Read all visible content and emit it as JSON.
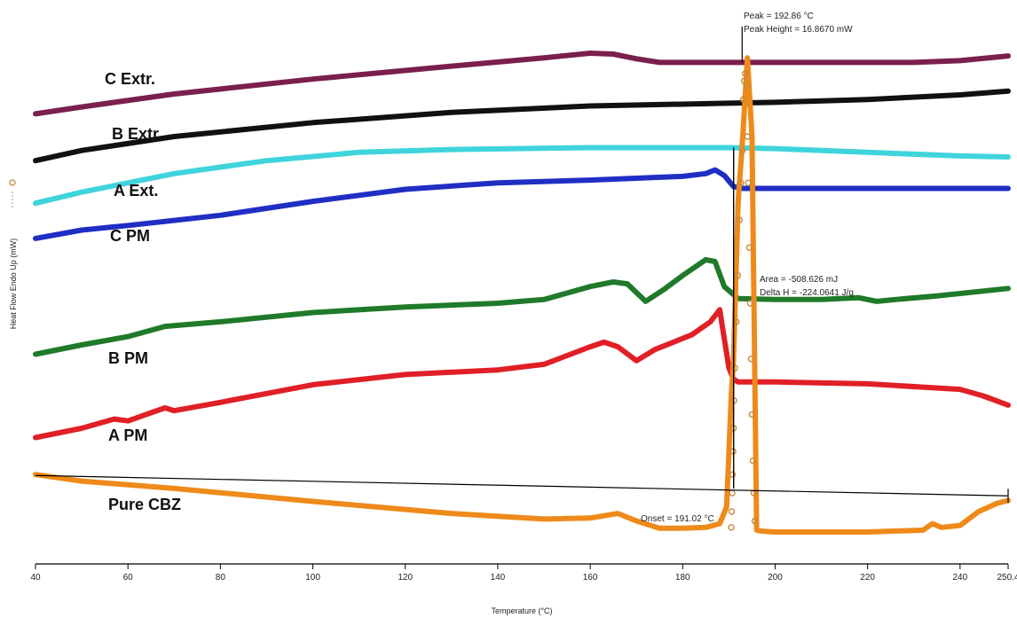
{
  "chart_data": {
    "type": "line",
    "title": "",
    "xlabel": "Temperature (°C)",
    "ylabel": "Heat Flow Endo Up (mW)",
    "xlim": [
      40,
      250.4
    ],
    "x_ticks": [
      "40",
      "60",
      "80",
      "100",
      "120",
      "140",
      "160",
      "180",
      "200",
      "220",
      "240",
      "250.4"
    ],
    "grid": false,
    "series": [
      {
        "name": "C Extr.",
        "color": "#7a1f4e",
        "x": [
          40,
          50,
          70,
          100,
          130,
          150,
          160,
          165,
          170,
          175,
          190,
          200,
          230,
          240,
          250.4
        ],
        "y": [
          0.45,
          1.2,
          2.6,
          4.2,
          5.6,
          6.5,
          7.0,
          6.9,
          6.4,
          6.0,
          6.0,
          6.0,
          6.0,
          6.2,
          6.7
        ]
      },
      {
        "name": "B Extr.",
        "color": "#111111",
        "x": [
          40,
          50,
          70,
          100,
          130,
          160,
          190,
          200,
          220,
          240,
          250.4
        ],
        "y": [
          -4.6,
          -3.5,
          -2.0,
          -0.5,
          0.6,
          1.3,
          1.6,
          1.7,
          2.0,
          2.5,
          2.9
        ]
      },
      {
        "name": "A Ext.",
        "color": "#3fd4dc",
        "x": [
          40,
          50,
          70,
          90,
          110,
          130,
          160,
          190,
          200,
          220,
          240,
          250.4
        ],
        "y": [
          -9.2,
          -8.0,
          -6.0,
          -4.6,
          -3.7,
          -3.4,
          -3.2,
          -3.2,
          -3.3,
          -3.7,
          -4.1,
          -4.2
        ]
      },
      {
        "name": "C PM",
        "color": "#1f2fc4",
        "x": [
          40,
          50,
          60,
          80,
          100,
          120,
          140,
          160,
          180,
          185,
          187,
          189,
          191,
          193,
          200,
          220,
          250.4
        ],
        "y": [
          -13.0,
          -12.1,
          -11.6,
          -10.5,
          -9.0,
          -7.7,
          -7.0,
          -6.7,
          -6.3,
          -6.0,
          -5.6,
          -6.2,
          -7.4,
          -7.6,
          -7.6,
          -7.6,
          -7.6
        ]
      },
      {
        "name": "B PM",
        "color": "#1f7a2a",
        "x": [
          40,
          50,
          60,
          68,
          80,
          100,
          120,
          140,
          150,
          160,
          165,
          168,
          172,
          176,
          180,
          185,
          187,
          189,
          192,
          200,
          210,
          218,
          222,
          226,
          235,
          250.4
        ],
        "y": [
          -25.5,
          -24.5,
          -23.6,
          -22.5,
          -22.0,
          -21.0,
          -20.4,
          -20.0,
          -19.6,
          -18.2,
          -17.7,
          -17.9,
          -19.8,
          -18.5,
          -17.0,
          -15.3,
          -15.5,
          -18.2,
          -19.5,
          -19.6,
          -19.6,
          -19.4,
          -19.8,
          -19.6,
          -19.2,
          -18.4
        ]
      },
      {
        "name": "A PM",
        "color": "#e01f26",
        "x": [
          40,
          50,
          57,
          60,
          68,
          70,
          80,
          100,
          120,
          140,
          150,
          160,
          163,
          166,
          170,
          174,
          178,
          182,
          186,
          188,
          190,
          191,
          192,
          200,
          220,
          240,
          245,
          250.4
        ],
        "y": [
          -34.5,
          -33.5,
          -32.5,
          -32.7,
          -31.3,
          -31.6,
          -30.7,
          -28.8,
          -27.7,
          -27.2,
          -26.6,
          -24.7,
          -24.2,
          -24.7,
          -26.2,
          -25.0,
          -24.2,
          -23.4,
          -22.0,
          -20.7,
          -27.0,
          -28.2,
          -28.5,
          -28.5,
          -28.7,
          -29.3,
          -30.0,
          -31.0
        ]
      },
      {
        "name": "Pure CBZ",
        "color": "#ee8a1a",
        "x": [
          40,
          50,
          70,
          100,
          130,
          150,
          160,
          166,
          170,
          175,
          180,
          185,
          188,
          189.5,
          190.5,
          191,
          192,
          193,
          194,
          195,
          196,
          197,
          200,
          220,
          232,
          234,
          236,
          240,
          244,
          248,
          250.4
        ],
        "y": [
          -38.5,
          -39.2,
          -40.0,
          -41.4,
          -42.7,
          -43.3,
          -43.2,
          -42.7,
          -43.5,
          -44.3,
          -44.3,
          -44.2,
          -43.8,
          -42.0,
          -30.0,
          -26.0,
          -9.0,
          -2.0,
          6.5,
          -2.0,
          -44.5,
          -44.6,
          -44.7,
          -44.7,
          -44.5,
          -43.8,
          -44.2,
          -44.0,
          -42.5,
          -41.6,
          -41.3
        ]
      }
    ],
    "marker_series": {
      "name": "Heat Flow Endo Up (mW)",
      "color": "#c48a3a",
      "x": [
        190.5,
        190.6,
        190.7,
        190.8,
        190.9,
        191.0,
        191.1,
        191.3,
        191.6,
        191.9,
        192.3,
        192.6,
        192.9,
        193.1,
        193.3,
        193.5,
        193.8,
        194.0,
        194.2,
        194.4,
        194.6,
        194.8,
        195.0,
        195.2,
        195.4,
        195.6
      ],
      "y": [
        -44.2,
        -42.5,
        -40.5,
        -38.5,
        -36.0,
        -33.5,
        -30.5,
        -27.0,
        -22.0,
        -17.0,
        -11.0,
        -7.0,
        -3.5,
        2.0,
        4.0,
        4.8,
        3.5,
        -2.0,
        -7.0,
        -14.0,
        -20.0,
        -26.0,
        -32.0,
        -37.0,
        -40.5,
        -43.5
      ]
    },
    "annotations": {
      "peak": "Peak = 192.86 °C",
      "peak_height": "Peak Height = 16.8670 mW",
      "area": "Area = -508.626 mJ",
      "delta_h": "Delta H = -224.0641 J/g",
      "onset": "Onset = 191.02 °C"
    },
    "reference_lines": {
      "baseline_x": [
        40,
        250.4
      ],
      "baseline_y": [
        -38.6,
        -40.8
      ],
      "onset_x": 191.02,
      "peak_x": 192.86
    }
  }
}
